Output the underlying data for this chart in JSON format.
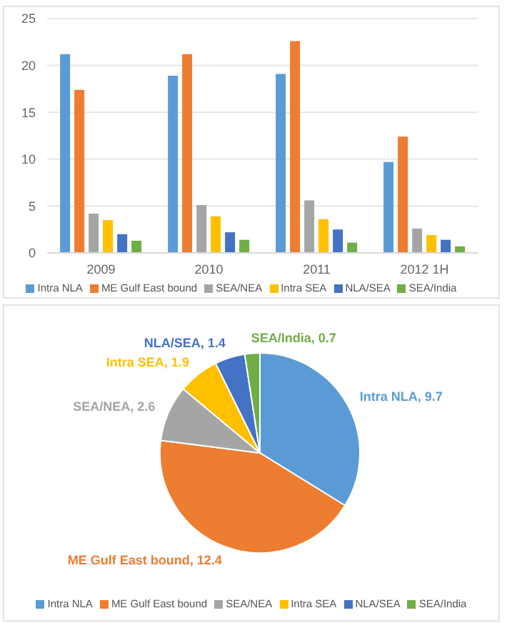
{
  "chart_data": [
    {
      "type": "bar",
      "categories": [
        "2009",
        "2010",
        "2011",
        "2012 1H"
      ],
      "ylim": [
        0,
        25
      ],
      "yticks": [
        0,
        5,
        10,
        15,
        20,
        25
      ],
      "grid": "y",
      "legend": "bottom",
      "series": [
        {
          "name": "Intra NLA",
          "color": "#5b9bd5",
          "values": [
            21.2,
            18.9,
            19.1,
            9.7
          ]
        },
        {
          "name": "ME Gulf East bound",
          "color": "#ed7d31",
          "values": [
            17.4,
            21.2,
            22.6,
            12.4
          ]
        },
        {
          "name": "SEA/NEA",
          "color": "#a5a5a5",
          "values": [
            4.2,
            5.1,
            5.6,
            2.6
          ]
        },
        {
          "name": "Intra SEA",
          "color": "#ffc000",
          "values": [
            3.5,
            3.9,
            3.6,
            1.9
          ]
        },
        {
          "name": "NLA/SEA",
          "color": "#4472c4",
          "values": [
            2.0,
            2.2,
            2.5,
            1.4
          ]
        },
        {
          "name": "SEA/India",
          "color": "#70ad47",
          "values": [
            1.3,
            1.4,
            1.1,
            0.7
          ]
        }
      ]
    },
    {
      "type": "pie",
      "categories": [
        "Intra NLA",
        "ME Gulf East bound",
        "SEA/NEA",
        "Intra SEA",
        "NLA/SEA",
        "SEA/India"
      ],
      "values": [
        9.7,
        12.4,
        2.6,
        1.9,
        1.4,
        0.7
      ],
      "colors": [
        "#5b9bd5",
        "#ed7d31",
        "#a5a5a5",
        "#ffc000",
        "#4472c4",
        "#70ad47"
      ],
      "value_labels": [
        "Intra NLA, 9.7",
        "ME Gulf East bound, 12.4",
        "SEA/NEA, 2.6",
        "Intra SEA, 1.9",
        "NLA/SEA, 1.4",
        "SEA/India, 0.7"
      ],
      "legend": "bottom"
    }
  ]
}
